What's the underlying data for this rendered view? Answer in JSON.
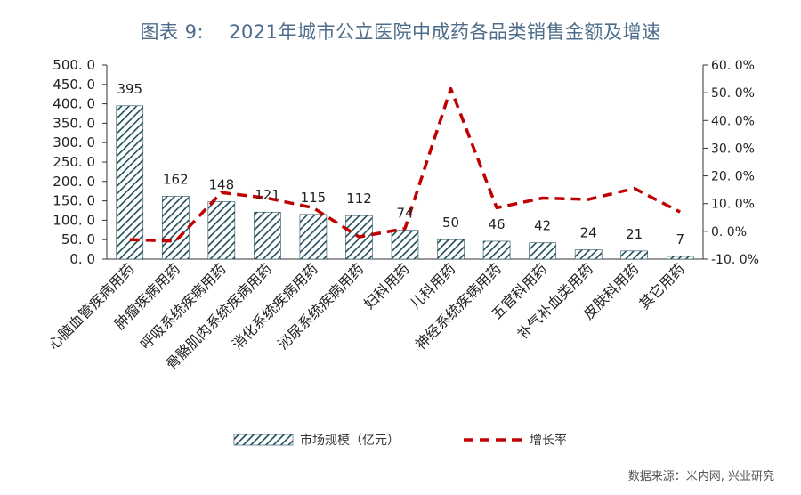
{
  "title": {
    "number": "图表 9:",
    "text": "2021年城市公立医院中成药各品类销售金额及增速"
  },
  "source": "数据来源：米内网, 兴业研究",
  "colors": {
    "bar": "#1f4e5a",
    "line": "#c00000",
    "axis": "#333333"
  },
  "chart_data": {
    "type": "bar",
    "categories": [
      "心脑血管疾病用药",
      "肿瘤疾病用药",
      "呼吸系统疾病用药",
      "骨骼肌肉系统疾病用药",
      "消化系统疾病用药",
      "泌尿系统疾病用药",
      "妇科用药",
      "儿科用药",
      "神经系统疾病用药",
      "五官科用药",
      "补气补血类用药",
      "皮肤科用药",
      "其它用药"
    ],
    "series": [
      {
        "name": "市场规模（亿元）",
        "type": "bar",
        "axis": "left",
        "values": [
          395,
          162,
          148,
          121,
          115,
          112,
          74,
          50,
          46,
          42,
          24,
          21,
          7
        ],
        "labels": [
          "395",
          "162",
          "148",
          "121",
          "115",
          "112",
          "74",
          "50",
          "46",
          "42",
          "24",
          "21",
          "7"
        ]
      },
      {
        "name": "增长率",
        "type": "line",
        "axis": "right",
        "values": [
          -3.0,
          -3.5,
          14.0,
          12.0,
          8.5,
          -2.0,
          1.0,
          51.5,
          8.5,
          12.0,
          11.5,
          15.5,
          7.0
        ]
      }
    ],
    "y_left": {
      "lim": [
        0,
        500
      ],
      "ticks": [
        0,
        50,
        100,
        150,
        200,
        250,
        300,
        350,
        400,
        450,
        500
      ],
      "tick_labels": [
        "0. 0",
        "50. 0",
        "100. 0",
        "150. 0",
        "200. 0",
        "250. 0",
        "300. 0",
        "350. 0",
        "400. 0",
        "450. 0",
        "500. 0"
      ]
    },
    "y_right": {
      "lim": [
        -10,
        60
      ],
      "ticks": [
        -10,
        0,
        10,
        20,
        30,
        40,
        50,
        60
      ],
      "tick_labels": [
        "-10. 0%",
        "0. 0%",
        "10. 0%",
        "20. 0%",
        "30. 0%",
        "40. 0%",
        "50. 0%",
        "60. 0%"
      ]
    },
    "grid": false,
    "legend": "bottom",
    "legend_labels": [
      "市场规模（亿元）",
      "增长率"
    ]
  }
}
